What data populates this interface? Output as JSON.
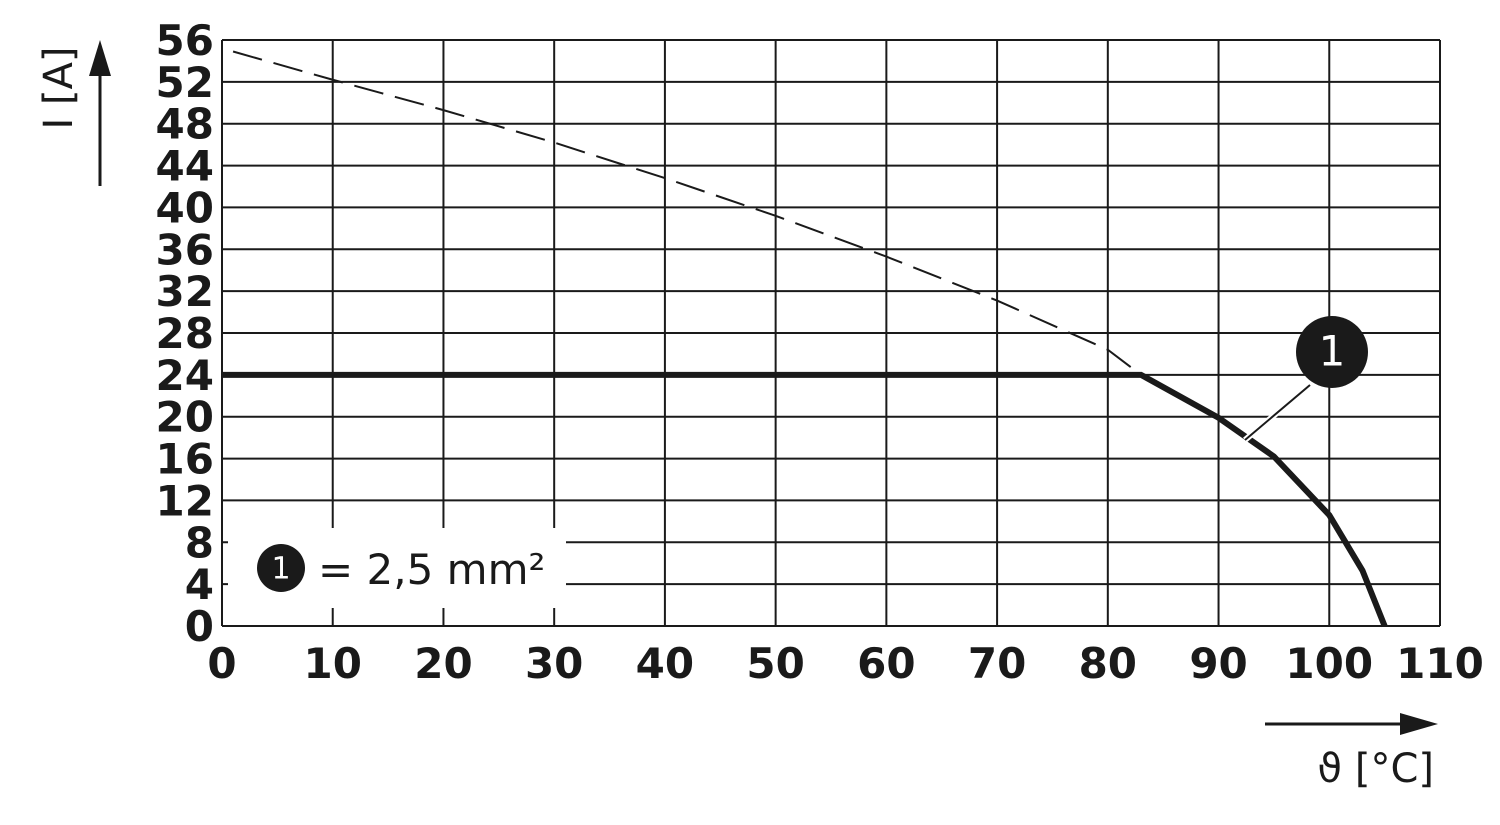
{
  "chart_data": {
    "type": "line",
    "y_label": "I [A]",
    "x_label": "ϑ [°C]",
    "xlim": [
      0,
      110
    ],
    "xticks": [
      0,
      10,
      20,
      30,
      40,
      50,
      60,
      70,
      80,
      90,
      100,
      110
    ],
    "ylim": [
      0,
      56
    ],
    "yticks": [
      0,
      4,
      8,
      12,
      16,
      20,
      24,
      28,
      32,
      36,
      40,
      44,
      48,
      52,
      56
    ],
    "grid": true,
    "series": [
      {
        "color": "#1a1a1a",
        "dashed": true,
        "x": [
          1,
          10,
          20,
          30,
          40,
          50,
          60,
          70,
          80,
          83
        ],
        "values": [
          54.9,
          52.2,
          49.3,
          46.2,
          42.8,
          39.2,
          35.3,
          31.1,
          26.4,
          24
        ]
      },
      {
        "color": "#1a1a1a",
        "dashed": false,
        "x": [
          0,
          83,
          90,
          95,
          100,
          103,
          105
        ],
        "values": [
          24,
          24,
          19.9,
          16.2,
          10.6,
          5.3,
          0
        ]
      }
    ],
    "series_marker": "1",
    "legend_text": "= 2,5 mm²"
  }
}
